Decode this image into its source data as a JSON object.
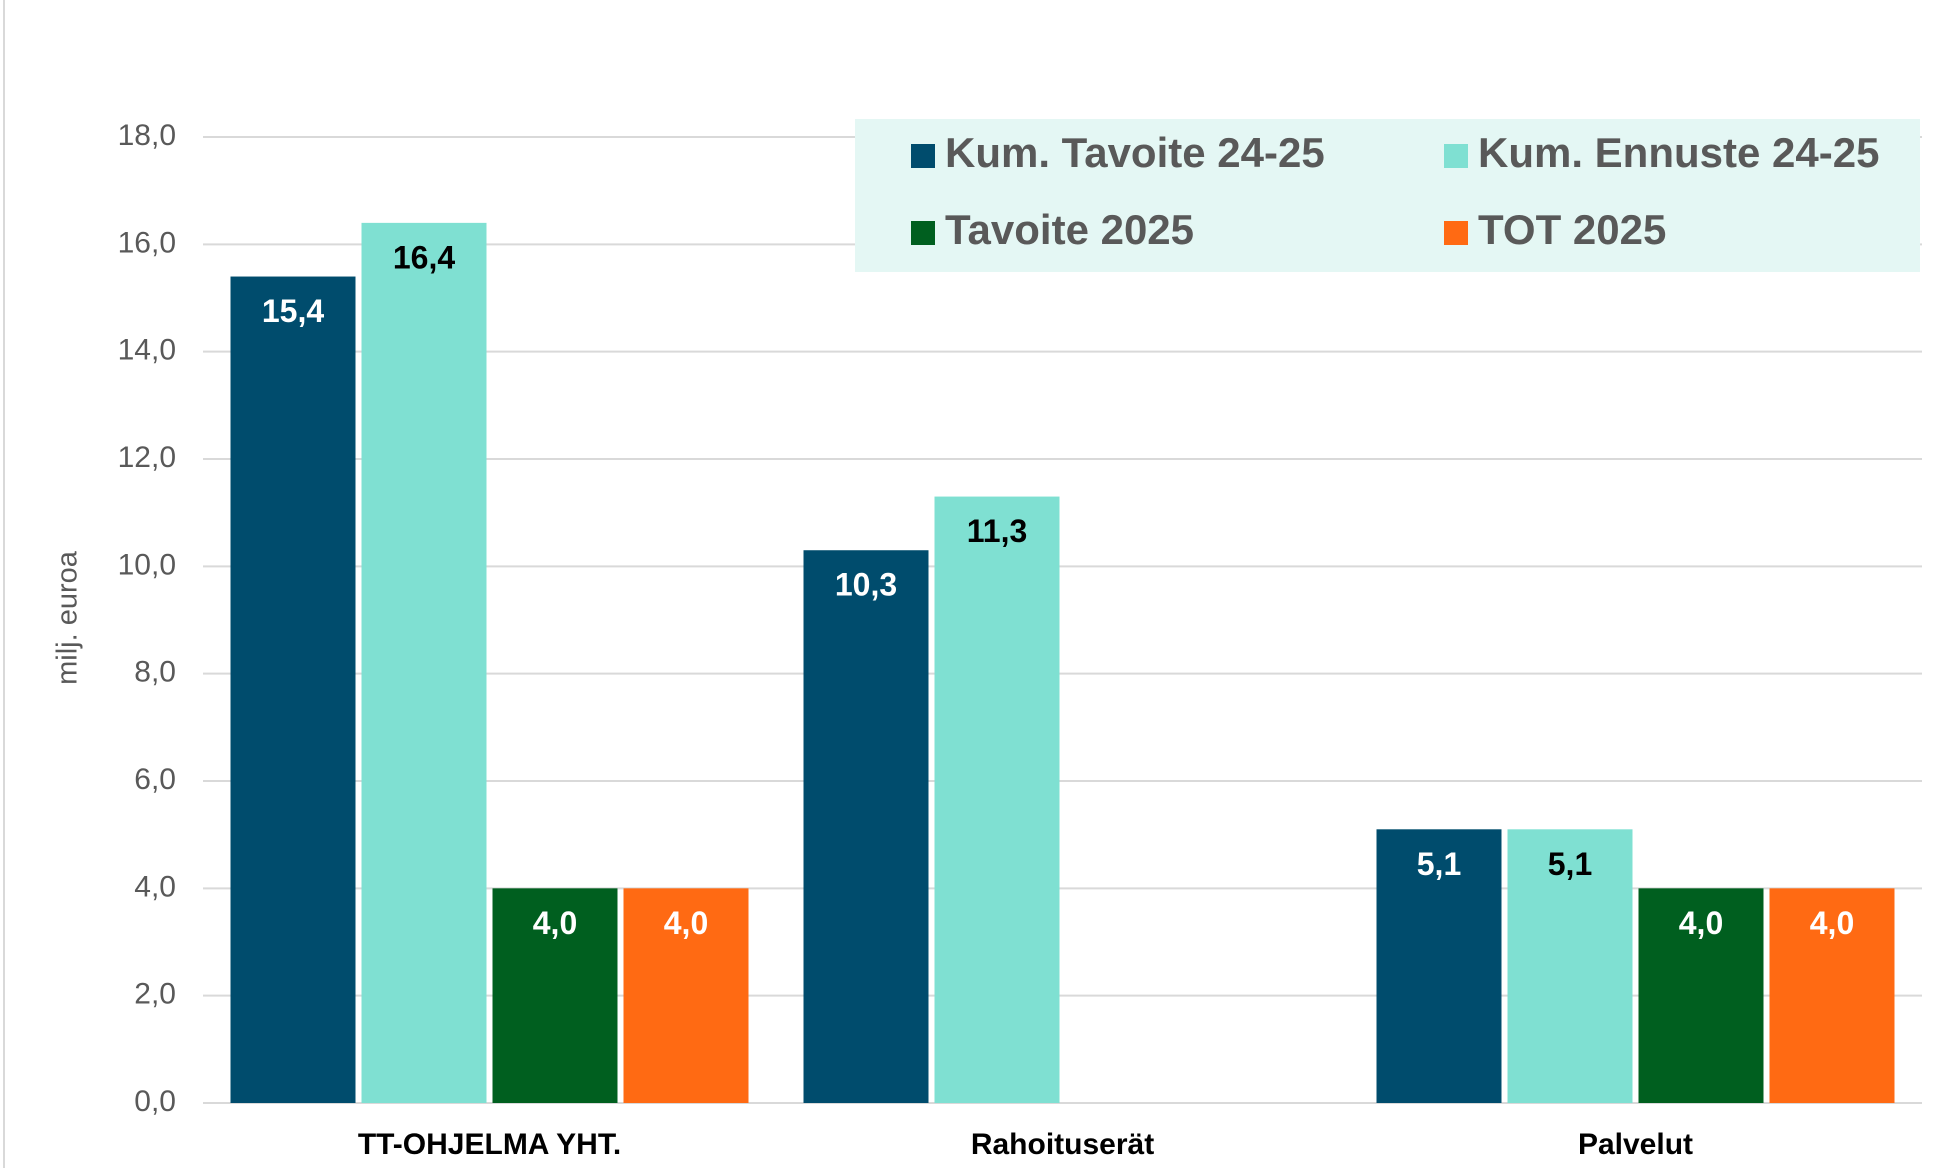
{
  "chart_data": {
    "type": "bar",
    "y_label": "milj. euroa",
    "categories": [
      "TT-OHJELMA YHT.",
      "Rahoituserät",
      "Palvelut"
    ],
    "series": [
      {
        "name": "Kum. Tavoite 24-25",
        "color": "#004c6d",
        "values": [
          15.4,
          10.3,
          5.1
        ],
        "value_labels": [
          "15,4",
          "10,3",
          "5,1"
        ]
      },
      {
        "name": "Kum. Ennuste 24-25",
        "color": "#7fe0d2",
        "values": [
          16.4,
          11.3,
          5.1
        ],
        "value_labels": [
          "16,4",
          "11,3",
          "5,1"
        ]
      },
      {
        "name": "Tavoite 2025",
        "color": "#005f1f",
        "values": [
          4.0,
          null,
          4.0
        ],
        "value_labels": [
          "4,0",
          null,
          "4,0"
        ]
      },
      {
        "name": "TOT 2025",
        "color": "#ff6a13",
        "values": [
          4.0,
          null,
          4.0
        ],
        "value_labels": [
          "4,0",
          null,
          "4,0"
        ]
      }
    ],
    "ylim": [
      0,
      18
    ],
    "yticks": [
      {
        "value": 0,
        "label": "0,0"
      },
      {
        "value": 2,
        "label": "2,0"
      },
      {
        "value": 4,
        "label": "4,0"
      },
      {
        "value": 6,
        "label": "6,0"
      },
      {
        "value": 8,
        "label": "8,0"
      },
      {
        "value": 10,
        "label": "10,0"
      },
      {
        "value": 12,
        "label": "12,0"
      },
      {
        "value": 14,
        "label": "14,0"
      },
      {
        "value": 16,
        "label": "16,0"
      },
      {
        "value": 18,
        "label": "18,0"
      }
    ],
    "grid": true,
    "legend": "top-right"
  }
}
